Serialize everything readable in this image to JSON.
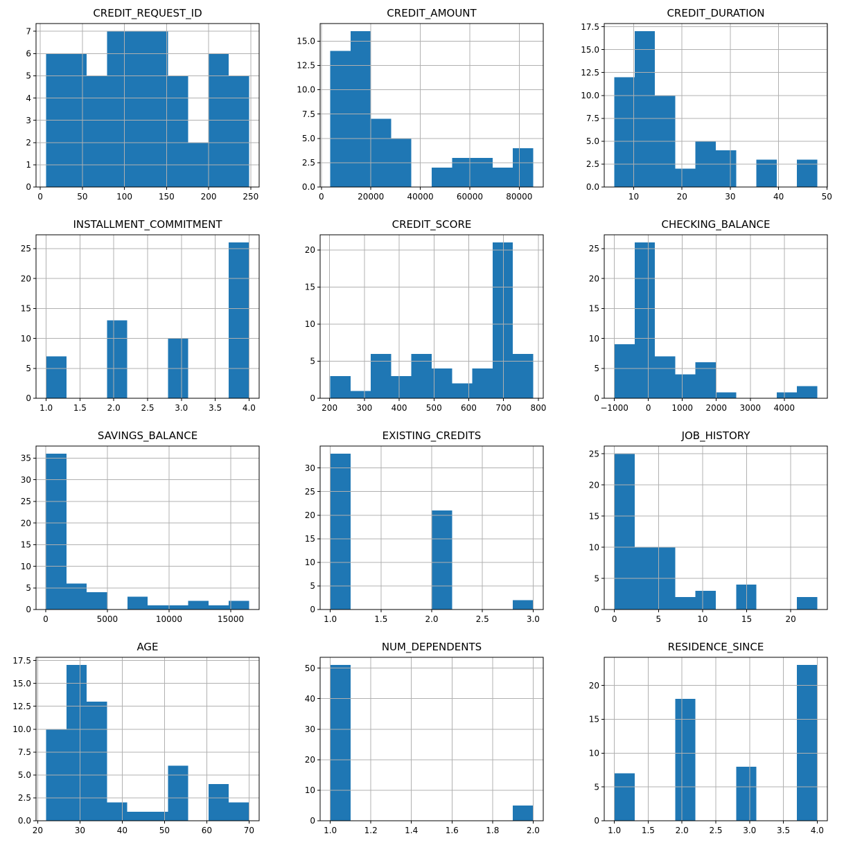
{
  "figure": {
    "background": "#ffffff",
    "bar_color": "#1f77b4",
    "grid_color": "#b0b0b0",
    "axis_color": "#000000",
    "tick_label_color": "#000000",
    "layout": {
      "rows": 4,
      "cols": 3
    },
    "grid_on": true
  },
  "chart_data": [
    {
      "type": "bar",
      "title": "CREDIT_REQUEST_ID",
      "bin_start": 7,
      "bin_width": 24.1,
      "values": [
        6,
        6,
        5,
        7,
        7,
        7,
        5,
        2,
        6,
        5
      ],
      "xlim": [
        -5.05,
        260.05
      ],
      "ylim": [
        0,
        7.35
      ],
      "x_tick_vals": [
        0,
        50,
        100,
        150,
        200,
        250
      ],
      "x_tick_labels": [
        "0",
        "50",
        "100",
        "150",
        "200",
        "250"
      ],
      "y_tick_vals": [
        0,
        1,
        2,
        3,
        4,
        5,
        6,
        7
      ],
      "y_tick_labels": [
        "0",
        "1",
        "2",
        "3",
        "4",
        "5",
        "6",
        "7"
      ]
    },
    {
      "type": "bar",
      "title": "CREDIT_AMOUNT",
      "bin_start": 3600,
      "bin_width": 8200,
      "values": [
        14,
        16,
        7,
        5,
        0,
        2,
        3,
        3,
        2,
        4
      ],
      "xlim": [
        -500,
        89700
      ],
      "ylim": [
        0,
        16.8
      ],
      "x_tick_vals": [
        0,
        20000,
        40000,
        60000,
        80000
      ],
      "x_tick_labels": [
        "0",
        "20000",
        "40000",
        "60000",
        "80000"
      ],
      "y_tick_vals": [
        0,
        2.5,
        5,
        7.5,
        10,
        12.5,
        15
      ],
      "y_tick_labels": [
        "0.0",
        "2.5",
        "5.0",
        "7.5",
        "10.0",
        "12.5",
        "15.0"
      ]
    },
    {
      "type": "bar",
      "title": "CREDIT_DURATION",
      "bin_start": 6,
      "bin_width": 4.2,
      "values": [
        12,
        17,
        10,
        2,
        5,
        4,
        0,
        3,
        0,
        3
      ],
      "xlim": [
        3.9,
        50.1
      ],
      "ylim": [
        0,
        17.85
      ],
      "x_tick_vals": [
        10,
        20,
        30,
        40,
        50
      ],
      "x_tick_labels": [
        "10",
        "20",
        "30",
        "40",
        "50"
      ],
      "y_tick_vals": [
        0,
        2.5,
        5,
        7.5,
        10,
        12.5,
        15,
        17.5
      ],
      "y_tick_labels": [
        "0.0",
        "2.5",
        "5.0",
        "7.5",
        "10.0",
        "12.5",
        "15.0",
        "17.5"
      ]
    },
    {
      "type": "bar",
      "title": "INSTALLMENT_COMMITMENT",
      "bin_start": 1,
      "bin_width": 0.3,
      "values": [
        7,
        0,
        0,
        13,
        0,
        0,
        10,
        0,
        0,
        26
      ],
      "xlim": [
        0.85,
        4.15
      ],
      "ylim": [
        0,
        27.3
      ],
      "x_tick_vals": [
        1,
        1.5,
        2,
        2.5,
        3,
        3.5,
        4
      ],
      "x_tick_labels": [
        "1.0",
        "1.5",
        "2.0",
        "2.5",
        "3.0",
        "3.5",
        "4.0"
      ],
      "y_tick_vals": [
        0,
        5,
        10,
        15,
        20,
        25
      ],
      "y_tick_labels": [
        "0",
        "5",
        "10",
        "15",
        "20",
        "25"
      ]
    },
    {
      "type": "bar",
      "title": "CREDIT_SCORE",
      "bin_start": 202,
      "bin_width": 58.3,
      "values": [
        3,
        1,
        6,
        3,
        6,
        4,
        2,
        4,
        21,
        6
      ],
      "xlim": [
        172.85,
        814.15
      ],
      "ylim": [
        0,
        22.05
      ],
      "x_tick_vals": [
        200,
        300,
        400,
        500,
        600,
        700,
        800
      ],
      "x_tick_labels": [
        "200",
        "300",
        "400",
        "500",
        "600",
        "700",
        "800"
      ],
      "y_tick_vals": [
        0,
        5,
        10,
        15,
        20
      ],
      "y_tick_labels": [
        "0",
        "5",
        "10",
        "15",
        "20"
      ]
    },
    {
      "type": "bar",
      "title": "CHECKING_BALANCE",
      "bin_start": -1000,
      "bin_width": 597,
      "values": [
        9,
        26,
        7,
        4,
        6,
        1,
        0,
        0,
        1,
        2
      ],
      "xlim": [
        -1298.5,
        5268.5
      ],
      "ylim": [
        0,
        27.3
      ],
      "x_tick_vals": [
        -1000,
        0,
        1000,
        2000,
        3000,
        4000
      ],
      "x_tick_labels": [
        "−1000",
        "0",
        "1000",
        "2000",
        "3000",
        "4000"
      ],
      "y_tick_vals": [
        0,
        5,
        10,
        15,
        20,
        25
      ],
      "y_tick_labels": [
        "0",
        "5",
        "10",
        "15",
        "20",
        "25"
      ]
    },
    {
      "type": "bar",
      "title": "SAVINGS_BALANCE",
      "bin_start": 40,
      "bin_width": 1645,
      "values": [
        36,
        6,
        4,
        0,
        3,
        1,
        1,
        2,
        1,
        2
      ],
      "xlim": [
        -782.5,
        17307.5
      ],
      "ylim": [
        0,
        37.8
      ],
      "x_tick_vals": [
        0,
        5000,
        10000,
        15000
      ],
      "x_tick_labels": [
        "0",
        "5000",
        "10000",
        "15000"
      ],
      "y_tick_vals": [
        0,
        5,
        10,
        15,
        20,
        25,
        30,
        35
      ],
      "y_tick_labels": [
        "0",
        "5",
        "10",
        "15",
        "20",
        "25",
        "30",
        "35"
      ]
    },
    {
      "type": "bar",
      "title": "EXISTING_CREDITS",
      "bin_start": 1,
      "bin_width": 0.2,
      "values": [
        33,
        0,
        0,
        0,
        0,
        21,
        0,
        0,
        0,
        2
      ],
      "xlim": [
        0.9,
        3.1
      ],
      "ylim": [
        0,
        34.65
      ],
      "x_tick_vals": [
        1,
        1.5,
        2,
        2.5,
        3
      ],
      "x_tick_labels": [
        "1.0",
        "1.5",
        "2.0",
        "2.5",
        "3.0"
      ],
      "y_tick_vals": [
        0,
        5,
        10,
        15,
        20,
        25,
        30
      ],
      "y_tick_labels": [
        "0",
        "5",
        "10",
        "15",
        "20",
        "25",
        "30"
      ]
    },
    {
      "type": "bar",
      "title": "JOB_HISTORY",
      "bin_start": 0,
      "bin_width": 2.3,
      "values": [
        25,
        10,
        10,
        2,
        3,
        0,
        4,
        0,
        0,
        2
      ],
      "xlim": [
        -1.15,
        24.15
      ],
      "ylim": [
        0,
        26.25
      ],
      "x_tick_vals": [
        0,
        5,
        10,
        15,
        20
      ],
      "x_tick_labels": [
        "0",
        "5",
        "10",
        "15",
        "20"
      ],
      "y_tick_vals": [
        0,
        5,
        10,
        15,
        20,
        25
      ],
      "y_tick_labels": [
        "0",
        "5",
        "10",
        "15",
        "20",
        "25"
      ]
    },
    {
      "type": "bar",
      "title": "AGE",
      "bin_start": 22,
      "bin_width": 4.8,
      "values": [
        10,
        17,
        13,
        2,
        1,
        1,
        6,
        0,
        4,
        2
      ],
      "xlim": [
        19.6,
        72.4
      ],
      "ylim": [
        0,
        17.85
      ],
      "x_tick_vals": [
        20,
        30,
        40,
        50,
        60,
        70
      ],
      "x_tick_labels": [
        "20",
        "30",
        "40",
        "50",
        "60",
        "70"
      ],
      "y_tick_vals": [
        0,
        2.5,
        5,
        7.5,
        10,
        12.5,
        15,
        17.5
      ],
      "y_tick_labels": [
        "0.0",
        "2.5",
        "5.0",
        "7.5",
        "10.0",
        "12.5",
        "15.0",
        "17.5"
      ]
    },
    {
      "type": "bar",
      "title": "NUM_DEPENDENTS",
      "bin_start": 1,
      "bin_width": 0.1,
      "values": [
        51,
        0,
        0,
        0,
        0,
        0,
        0,
        0,
        0,
        5
      ],
      "xlim": [
        0.95,
        2.05
      ],
      "ylim": [
        0,
        53.55
      ],
      "x_tick_vals": [
        1,
        1.2,
        1.4,
        1.6,
        1.8,
        2
      ],
      "x_tick_labels": [
        "1.0",
        "1.2",
        "1.4",
        "1.6",
        "1.8",
        "2.0"
      ],
      "y_tick_vals": [
        0,
        10,
        20,
        30,
        40,
        50
      ],
      "y_tick_labels": [
        "0",
        "10",
        "20",
        "30",
        "40",
        "50"
      ]
    },
    {
      "type": "bar",
      "title": "RESIDENCE_SINCE",
      "bin_start": 1,
      "bin_width": 0.3,
      "values": [
        7,
        0,
        0,
        18,
        0,
        0,
        8,
        0,
        0,
        23
      ],
      "xlim": [
        0.85,
        4.15
      ],
      "ylim": [
        0,
        24.15
      ],
      "x_tick_vals": [
        1,
        1.5,
        2,
        2.5,
        3,
        3.5,
        4
      ],
      "x_tick_labels": [
        "1.0",
        "1.5",
        "2.0",
        "2.5",
        "3.0",
        "3.5",
        "4.0"
      ],
      "y_tick_vals": [
        0,
        5,
        10,
        15,
        20
      ],
      "y_tick_labels": [
        "0",
        "5",
        "10",
        "15",
        "20"
      ]
    }
  ]
}
